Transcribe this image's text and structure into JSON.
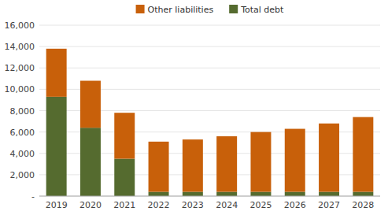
{
  "chart_data": {
    "type": "bar",
    "stacked": true,
    "categories": [
      "2019",
      "2020",
      "2021",
      "2022",
      "2023",
      "2024",
      "2025",
      "2026",
      "2027",
      "2028"
    ],
    "series": [
      {
        "name": "Total debt",
        "color": "#556B2F",
        "values": [
          9300,
          6400,
          3500,
          400,
          400,
          400,
          400,
          400,
          400,
          400
        ]
      },
      {
        "name": "Other liabilities",
        "color": "#C8600A",
        "values": [
          4500,
          4400,
          4300,
          4700,
          4900,
          5200,
          5600,
          5900,
          6400,
          7000
        ]
      }
    ],
    "ylim": [
      0,
      16000
    ],
    "yticks": [
      {
        "value": 0,
        "label": "-"
      },
      {
        "value": 2000,
        "label": "2,000"
      },
      {
        "value": 4000,
        "label": "4,000"
      },
      {
        "value": 6000,
        "label": "6,000"
      },
      {
        "value": 8000,
        "label": "8,000"
      },
      {
        "value": 10000,
        "label": "10,000"
      },
      {
        "value": 12000,
        "label": "12,000"
      },
      {
        "value": 14000,
        "label": "14,000"
      },
      {
        "value": 16000,
        "label": "16,000"
      }
    ],
    "grid": true,
    "legend": "top"
  }
}
